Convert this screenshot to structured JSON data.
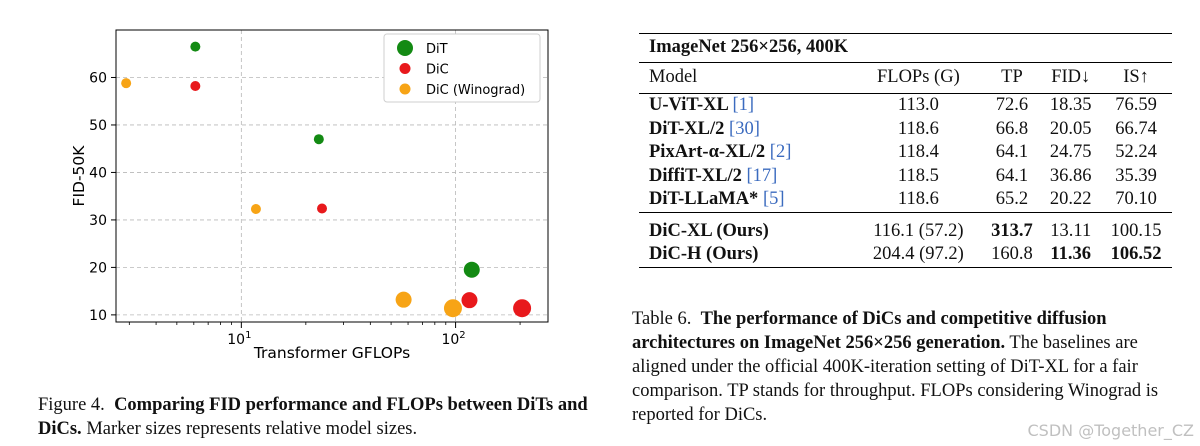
{
  "chart_data": {
    "type": "scatter",
    "xlabel": "Transformer GFLOPs",
    "ylabel": "FID-50K",
    "xscale": "log",
    "xlim": [
      2.6,
      270
    ],
    "ylim": [
      8.5,
      70
    ],
    "yticks": [
      10,
      20,
      30,
      40,
      50,
      60
    ],
    "xticks": [
      {
        "value": 10,
        "base": "10",
        "exp": "1"
      },
      {
        "value": 100,
        "base": "10",
        "exp": "2"
      }
    ],
    "grid": true,
    "legend_position": "top-right",
    "series": [
      {
        "name": "DiT",
        "color": "#138a13",
        "points": [
          {
            "x": 6.1,
            "y": 66.5,
            "size": "small"
          },
          {
            "x": 23.0,
            "y": 47.0,
            "size": "small"
          },
          {
            "x": 119.0,
            "y": 19.5,
            "size": "large"
          }
        ]
      },
      {
        "name": "DiC",
        "color": "#e8191c",
        "points": [
          {
            "x": 6.1,
            "y": 58.2,
            "size": "small"
          },
          {
            "x": 23.8,
            "y": 32.4,
            "size": "small"
          },
          {
            "x": 116.1,
            "y": 13.1,
            "size": "large"
          },
          {
            "x": 204.4,
            "y": 11.4,
            "size": "xlarge"
          }
        ]
      },
      {
        "name": "DiC (Winograd)",
        "color": "#f7a416",
        "points": [
          {
            "x": 2.9,
            "y": 58.8,
            "size": "small"
          },
          {
            "x": 11.7,
            "y": 32.3,
            "size": "small"
          },
          {
            "x": 57.2,
            "y": 13.2,
            "size": "large"
          },
          {
            "x": 97.2,
            "y": 11.4,
            "size": "xlarge"
          }
        ]
      }
    ]
  },
  "figure": {
    "label": "Figure 4.",
    "bold_text": "Comparing FID performance and FLOPs between DiTs and DiCs.",
    "text": "Marker sizes represents relative model sizes."
  },
  "table": {
    "title": "ImageNet 256×256, 400K",
    "headers": [
      "Model",
      "FLOPs (G)",
      "TP",
      "FID↓",
      "IS↑"
    ],
    "rows": [
      {
        "model": "U-ViT-XL",
        "ref": "[1]",
        "flops": "113.0",
        "tp": "72.6",
        "fid": "18.35",
        "is": "76.59"
      },
      {
        "model": "DiT-XL/2",
        "ref": "[30]",
        "flops": "118.6",
        "tp": "66.8",
        "fid": "20.05",
        "is": "66.74"
      },
      {
        "model": "PixArt-α-XL/2",
        "ref": "[2]",
        "flops": "118.4",
        "tp": "64.1",
        "fid": "24.75",
        "is": "52.24"
      },
      {
        "model": "DiffiT-XL/2",
        "ref": "[17]",
        "flops": "118.5",
        "tp": "64.1",
        "fid": "36.86",
        "is": "35.39"
      },
      {
        "model": "DiT-LLaMA*",
        "ref": "[5]",
        "flops": "118.6",
        "tp": "65.2",
        "fid": "20.22",
        "is": "70.10"
      }
    ],
    "ours": [
      {
        "model": "DiC-XL (Ours)",
        "flops": "116.1 (57.2)",
        "tp": "313.7",
        "fid": "13.11",
        "is": "100.15"
      },
      {
        "model": "DiC-H (Ours)",
        "flops": "204.4 (97.2)",
        "tp": "160.8",
        "fid": "11.36",
        "is": "106.52"
      }
    ],
    "caption_label": "Table 6.",
    "caption_bold": "The performance of DiCs and competitive diffusion architectures on ImageNet 256×256 generation.",
    "caption_text": "The baselines are aligned under the official 400K-iteration setting of DiT-XL for a fair comparison. TP stands for throughput. FLOPs considering Winograd is reported for DiCs."
  },
  "watermark": "CSDN @Together_CZ"
}
